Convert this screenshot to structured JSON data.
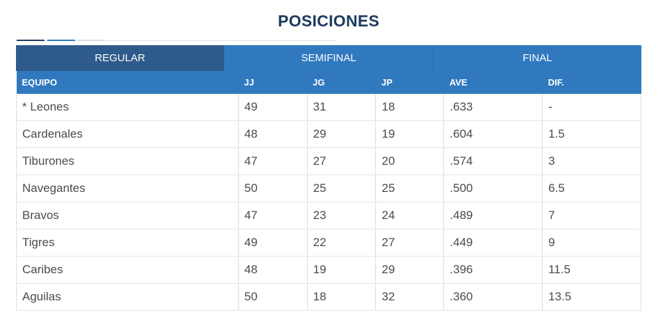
{
  "page": {
    "title": "POSICIONES"
  },
  "tabs": [
    {
      "label": "REGULAR",
      "active": true
    },
    {
      "label": "SEMIFINAL",
      "active": false
    },
    {
      "label": "FINAL",
      "active": false
    }
  ],
  "table": {
    "headers": [
      "EQUIPO",
      "JJ",
      "JG",
      "JP",
      "AVE",
      "DIF."
    ],
    "rows": [
      {
        "team": "* Leones",
        "jj": "49",
        "jg": "31",
        "jp": "18",
        "ave": ".633",
        "dif": "-"
      },
      {
        "team": "Cardenales",
        "jj": "48",
        "jg": "29",
        "jp": "19",
        "ave": ".604",
        "dif": "1.5"
      },
      {
        "team": "Tiburones",
        "jj": "47",
        "jg": "27",
        "jp": "20",
        "ave": ".574",
        "dif": "3"
      },
      {
        "team": "Navegantes",
        "jj": "50",
        "jg": "25",
        "jp": "25",
        "ave": ".500",
        "dif": "6.5"
      },
      {
        "team": "Bravos",
        "jj": "47",
        "jg": "23",
        "jp": "24",
        "ave": ".489",
        "dif": "7"
      },
      {
        "team": "Tigres",
        "jj": "49",
        "jg": "22",
        "jp": "27",
        "ave": ".449",
        "dif": "9"
      },
      {
        "team": "Caribes",
        "jj": "48",
        "jg": "19",
        "jp": "29",
        "ave": ".396",
        "dif": "11.5"
      },
      {
        "team": "Aguilas",
        "jj": "50",
        "jg": "18",
        "jp": "32",
        "ave": ".360",
        "dif": "13.5"
      }
    ]
  },
  "colors": {
    "header_blue": "#3079bf",
    "active_tab": "#2e5b8b",
    "title": "#1d3a5c"
  }
}
